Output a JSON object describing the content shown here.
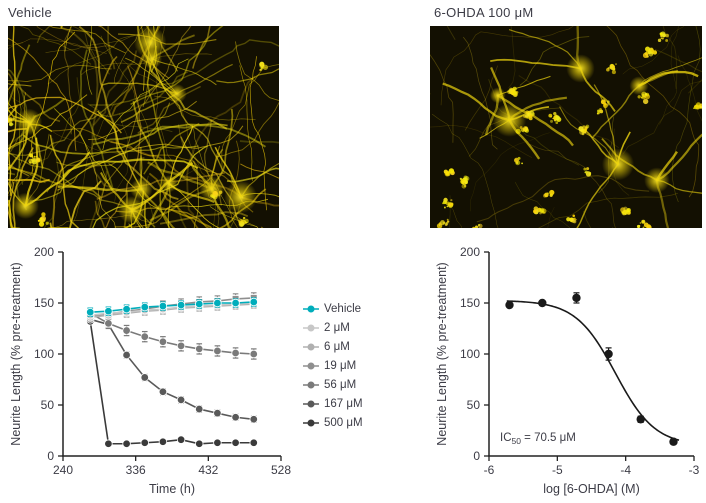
{
  "page": {
    "background": "#ffffff",
    "text_color": "#3c3c46",
    "axis_color": "#222222"
  },
  "panels": {
    "vehicle_image": {
      "title": "Vehicle",
      "type": "fluorescence micrograph",
      "description": "dense yellow neurite network on dark background",
      "neurite_color": "#eed200",
      "background_color": "#131002",
      "seed": 11,
      "filaments": 150,
      "hubs": 10,
      "clusters": 6,
      "dense_left": true,
      "sparse_top_right": true,
      "dim_filaments": false
    },
    "treated_image": {
      "title": "6-OHDA 100 μM",
      "type": "fluorescence micrograph",
      "description": "sparse fragmented neurites with punctate clusters",
      "neurite_color": "#e3c700",
      "background_color": "#131002",
      "seed": 23,
      "filaments": 34,
      "hubs": 6,
      "clusters": 26,
      "dense_left": false,
      "sparse_top_right": false,
      "dim_filaments": true
    }
  },
  "chart_data": [
    {
      "type": "line",
      "title": "",
      "xlabel": "Time (h)",
      "ylabel": "Neurite Length (% pre-treatment)",
      "xlim": [
        240,
        528
      ],
      "ylim": [
        0,
        200
      ],
      "xticks": [
        240,
        336,
        432,
        528
      ],
      "yticks": [
        0,
        50,
        100,
        150,
        200
      ],
      "grid": false,
      "legend_position": "right",
      "x": [
        276,
        300,
        324,
        348,
        372,
        396,
        420,
        444,
        468,
        492
      ],
      "series": [
        {
          "name": "Vehicle",
          "color": "#00adbb",
          "marker": "circle",
          "err": 4,
          "values": [
            141,
            142,
            144,
            146,
            147,
            148,
            149,
            150,
            150,
            151
          ]
        },
        {
          "name": "2 μM",
          "color": "#c7c7c7",
          "marker": "circle",
          "err": 4,
          "values": [
            138,
            140,
            141,
            143,
            144,
            146,
            147,
            148,
            149,
            150
          ]
        },
        {
          "name": "6 μM",
          "color": "#b0b0b0",
          "marker": "circle",
          "err": 4,
          "values": [
            136,
            138,
            140,
            142,
            143,
            145,
            146,
            147,
            148,
            149
          ]
        },
        {
          "name": "19 μM",
          "color": "#8f8f8f",
          "marker": "square",
          "err": 5,
          "values": [
            137,
            139,
            142,
            144,
            147,
            149,
            151,
            152,
            154,
            155
          ]
        },
        {
          "name": "56 μM",
          "color": "#7a7a7a",
          "marker": "circle",
          "err": 5,
          "values": [
            140,
            130,
            123,
            117,
            112,
            108,
            105,
            103,
            101,
            100
          ]
        },
        {
          "name": "167 μM",
          "color": "#595959",
          "marker": "circle",
          "err": 3,
          "values": [
            134,
            129,
            99,
            77,
            63,
            55,
            46,
            42,
            38,
            36
          ]
        },
        {
          "name": "500 μM",
          "color": "#3a3a3a",
          "marker": "circle",
          "err": 2,
          "values": [
            132,
            12,
            12,
            13,
            14,
            16,
            12,
            13,
            13,
            13
          ]
        }
      ]
    },
    {
      "type": "scatter",
      "title": "",
      "xlabel": "log [6-OHDA] (M)",
      "ylabel": "Neurite Length (% pre-treatment)",
      "xlim": [
        -6,
        -3
      ],
      "ylim": [
        0,
        200
      ],
      "xticks": [
        -6,
        -5,
        -4,
        -3
      ],
      "yticks": [
        0,
        50,
        100,
        150,
        200
      ],
      "grid": false,
      "points": {
        "x": [
          -5.7,
          -5.22,
          -4.72,
          -4.25,
          -3.78,
          -3.3
        ],
        "y": [
          148,
          150,
          155,
          100,
          36,
          14
        ],
        "err": [
          2,
          2,
          5,
          6,
          3,
          2
        ],
        "color": "#1a1a1a"
      },
      "fit_curve": {
        "model": "four-parameter logistic",
        "top": 152.5,
        "bottom": 10,
        "logIC50": -4.15,
        "hill": 1.5,
        "color": "#1a1a1a"
      },
      "annotation": {
        "base": "IC",
        "sub": "50",
        "rest": " = 70.5 μM"
      }
    }
  ]
}
